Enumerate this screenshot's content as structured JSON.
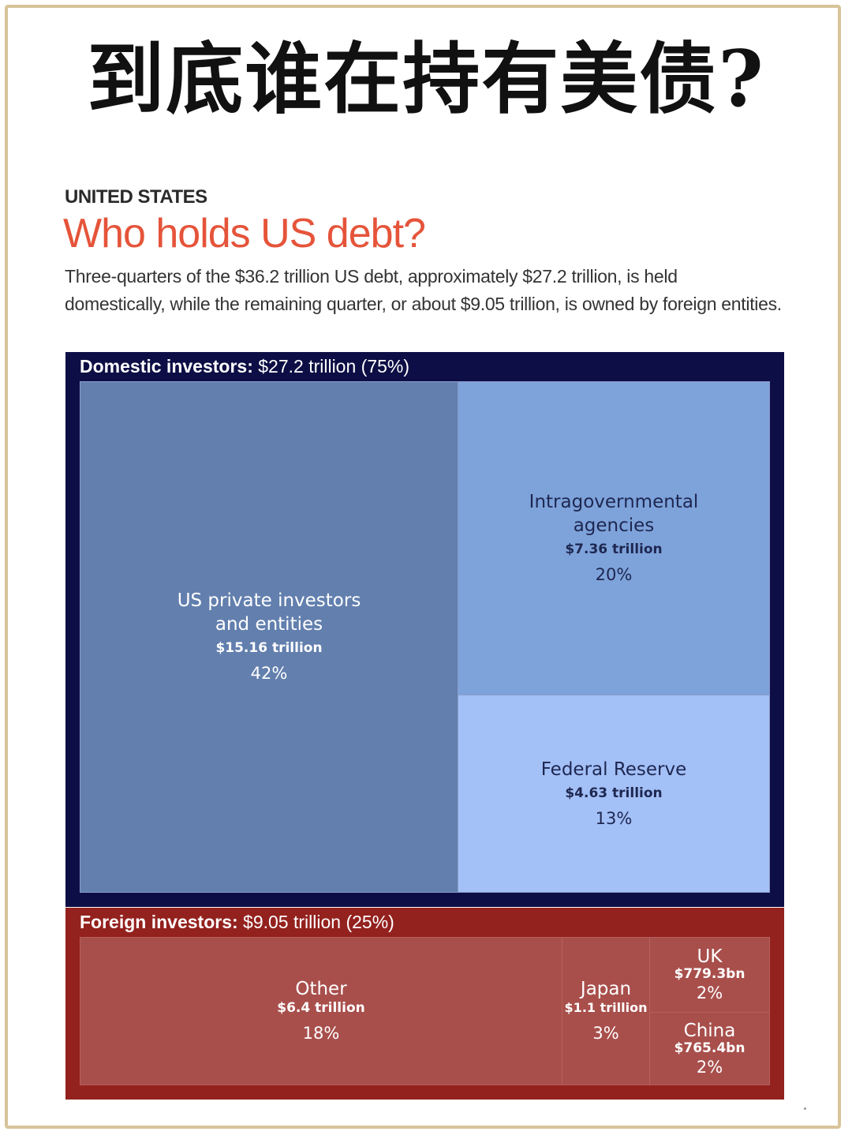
{
  "headline": "到底谁在持有美债?",
  "kicker": "UNITED STATES",
  "title": "Who holds US debt?",
  "description": "Three-quarters of the $36.2 trillion US debt, approximately $27.2 trillion, is held domestically, while the remaining quarter, or about $9.05 trillion, is owned by foreign entities.",
  "colors": {
    "title_accent": "#e5543a",
    "domestic_panel": "#0d0e45",
    "foreign_panel": "#93211e",
    "private": "#627fae",
    "intragov": "#7ea3db",
    "fed": "#a3c0f7",
    "foreign_tile": "#a84f4c"
  },
  "chart_data": {
    "type": "treemap",
    "groups": [
      {
        "label_bold": "Domestic investors:",
        "label_rest": " $27.2 trillion (75%)",
        "value_trillion": 27.2,
        "percent": 75,
        "items": [
          {
            "key": "private",
            "name": "US private investors and entities",
            "value_label": "$15.16 trillion",
            "percent_label": "42%",
            "value_trillion": 15.16
          },
          {
            "key": "intragov",
            "name": "Intragovernmental agencies",
            "value_label": "$7.36 trillion",
            "percent_label": "20%",
            "value_trillion": 7.36
          },
          {
            "key": "fed",
            "name": "Federal Reserve",
            "value_label": "$4.63 trillion",
            "percent_label": "13%",
            "value_trillion": 4.63
          }
        ]
      },
      {
        "label_bold": "Foreign investors:",
        "label_rest": " $9.05 trillion (25%)",
        "value_trillion": 9.05,
        "percent": 25,
        "items": [
          {
            "key": "other",
            "name": "Other",
            "value_label": "$6.4 trillion",
            "percent_label": "18%",
            "value_trillion": 6.4
          },
          {
            "key": "japan",
            "name": "Japan",
            "value_label": "$1.1 trillion",
            "percent_label": "3%",
            "value_trillion": 1.1
          },
          {
            "key": "uk",
            "name": "UK",
            "value_label": "$779.3bn",
            "percent_label": "2%",
            "value_trillion": 0.7793
          },
          {
            "key": "china",
            "name": "China",
            "value_label": "$765.4bn",
            "percent_label": "2%",
            "value_trillion": 0.7654
          }
        ]
      }
    ]
  }
}
